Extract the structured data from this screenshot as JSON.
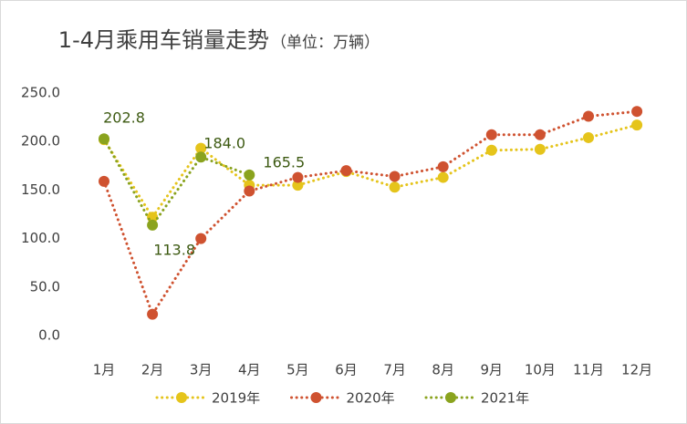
{
  "chart_data": {
    "type": "line",
    "title": "1-4月乘用车销量走势",
    "subtitle": "（单位：万辆）",
    "categories": [
      "1月",
      "2月",
      "3月",
      "4月",
      "5月",
      "6月",
      "7月",
      "8月",
      "9月",
      "10月",
      "11月",
      "12月"
    ],
    "series": [
      {
        "name": "2019年",
        "color": "#e5c41b",
        "values": [
          202,
          122,
          193,
          155,
          155,
          169,
          153,
          163,
          191,
          192,
          204,
          217
        ]
      },
      {
        "name": "2020年",
        "color": "#cf5230",
        "values": [
          159,
          22,
          100,
          149,
          163,
          170,
          164,
          174,
          207,
          207,
          226,
          231
        ]
      },
      {
        "name": "2021年",
        "color": "#8aa31e",
        "values": [
          202.8,
          113.8,
          184.0,
          165.5,
          null,
          null,
          null,
          null,
          null,
          null,
          null,
          null
        ],
        "value_labels": [
          "202.8",
          "113.8",
          "184.0",
          "165.5",
          null,
          null,
          null,
          null,
          null,
          null,
          null,
          null
        ]
      }
    ],
    "ylim": [
      0,
      250
    ],
    "yticks": [
      {
        "value": 0,
        "label": "0.0"
      },
      {
        "value": 50,
        "label": "50.0"
      },
      {
        "value": 100,
        "label": "100.0"
      },
      {
        "value": 150,
        "label": "150.0"
      },
      {
        "value": 200,
        "label": "200.0"
      },
      {
        "value": 250,
        "label": "250.0"
      }
    ],
    "grid": false,
    "legend": "bottom"
  }
}
